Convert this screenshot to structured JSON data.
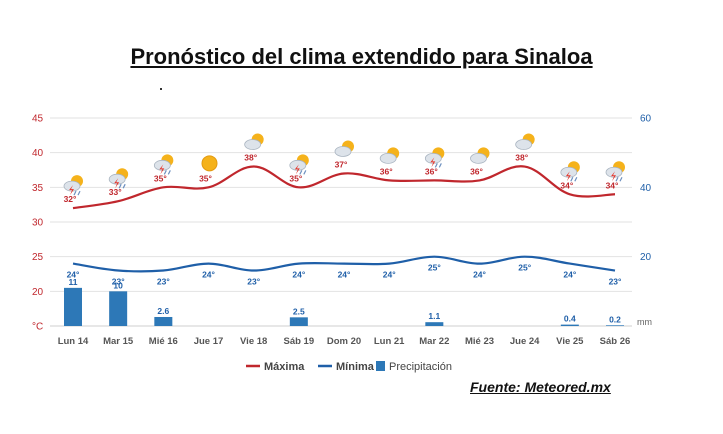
{
  "title": "Pronóstico del clima extendido para Sinaloa",
  "source": "Fuente: Meteored.mx",
  "colors": {
    "max": "#c0272d",
    "min": "#1f5fa8",
    "precip": "#2d78b7",
    "grid": "#e2e2e2"
  },
  "chart_data": {
    "type": "line",
    "categories": [
      "Lun 14",
      "Mar 15",
      "Mié 16",
      "Jue 17",
      "Vie 18",
      "Sáb 19",
      "Dom 20",
      "Lun 21",
      "Mar 22",
      "Mié 23",
      "Jue 24",
      "Vie 25",
      "Sáb 26"
    ],
    "left_axis": {
      "ticks": [
        "45",
        "40",
        "35",
        "30",
        "25",
        "20",
        "°C"
      ],
      "ylim": [
        15,
        45
      ]
    },
    "right_axis": {
      "ticks": [
        "60",
        "40",
        "20"
      ],
      "unit": "mm",
      "ylim": [
        0,
        60
      ]
    },
    "series": [
      {
        "name": "Máxima",
        "kind": "line",
        "values": [
          32,
          33,
          35,
          35,
          38,
          35,
          37,
          36,
          36,
          36,
          38,
          34,
          34
        ],
        "labels": [
          "32°",
          "33°",
          "35°",
          "35°",
          "38°",
          "35°",
          "37°",
          "36°",
          "36°",
          "36°",
          "38°",
          "34°",
          "34°"
        ]
      },
      {
        "name": "Mínima",
        "kind": "line",
        "values": [
          24,
          23,
          23,
          24,
          23,
          24,
          24,
          24,
          25,
          24,
          25,
          24,
          23
        ],
        "labels": [
          "24°",
          "23°",
          "23°",
          "24°",
          "23°",
          "24°",
          "24°",
          "24°",
          "25°",
          "24°",
          "25°",
          "24°",
          "23°"
        ]
      },
      {
        "name": "Precipitación",
        "kind": "bar",
        "values": [
          11,
          10,
          2.6,
          0,
          0,
          2.5,
          0,
          0,
          1.1,
          0,
          0,
          0.4,
          0.2
        ],
        "labels": [
          "11",
          "10",
          "2.6",
          "",
          "",
          "2.5",
          "",
          "",
          "1.1",
          "",
          "",
          "0.4",
          "0.2"
        ]
      }
    ],
    "weather_icons": [
      "storm-sun-icon",
      "storm-sun-icon",
      "storm-sun-icon",
      "sun-icon",
      "cloud-sun-icon",
      "storm-sun-icon",
      "cloud-sun-icon",
      "cloud-sun-icon",
      "storm-sun-icon",
      "cloud-sun-icon",
      "cloud-sun-icon",
      "storm-sun-icon",
      "storm-sun-icon"
    ],
    "legend": {
      "position": "bottom",
      "items": [
        "Máxima",
        "Mínima",
        "Precipitación"
      ]
    },
    "grid": true
  }
}
